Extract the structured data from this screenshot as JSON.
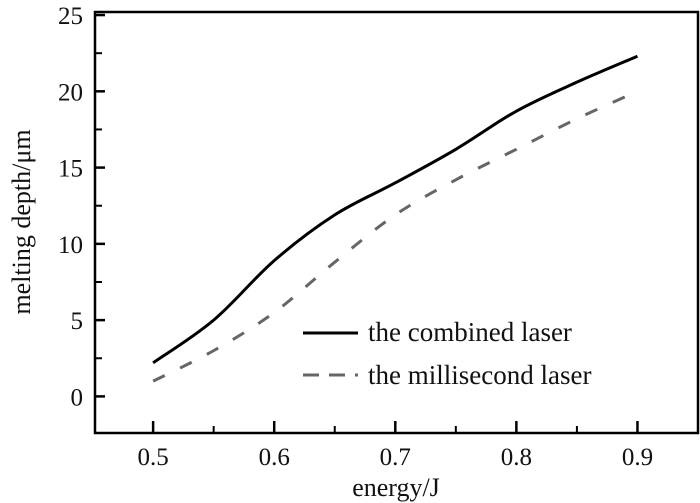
{
  "chart_data": {
    "type": "line",
    "title": "",
    "xlabel": "energy/J",
    "ylabel": "melting depth/μm",
    "xlim": [
      0.452,
      0.95
    ],
    "ylim": [
      -2.4,
      25.2
    ],
    "xticks": [
      0.5,
      0.6,
      0.7,
      0.8,
      0.9
    ],
    "xtick_labels": [
      "0.5",
      "0.6",
      "0.7",
      "0.8",
      "0.9"
    ],
    "yticks": [
      0,
      5,
      10,
      15,
      20,
      25
    ],
    "ytick_labels": [
      "0",
      "5",
      "10",
      "15",
      "20",
      "25"
    ],
    "grid": false,
    "legend_position": "bottom-right",
    "x": [
      0.5,
      0.55,
      0.6,
      0.65,
      0.7,
      0.75,
      0.8,
      0.85,
      0.9
    ],
    "series": [
      {
        "name": "the combined laser",
        "style": "solid",
        "color": "#000000",
        "values": [
          2.2,
          5.0,
          8.9,
          11.9,
          14.0,
          16.2,
          18.7,
          20.6,
          22.3
        ]
      },
      {
        "name": "the millisecond laser",
        "style": "dashed",
        "color": "#666666",
        "values": [
          1.0,
          3.0,
          5.5,
          8.8,
          11.9,
          14.2,
          16.2,
          18.2,
          20.0
        ]
      }
    ]
  }
}
